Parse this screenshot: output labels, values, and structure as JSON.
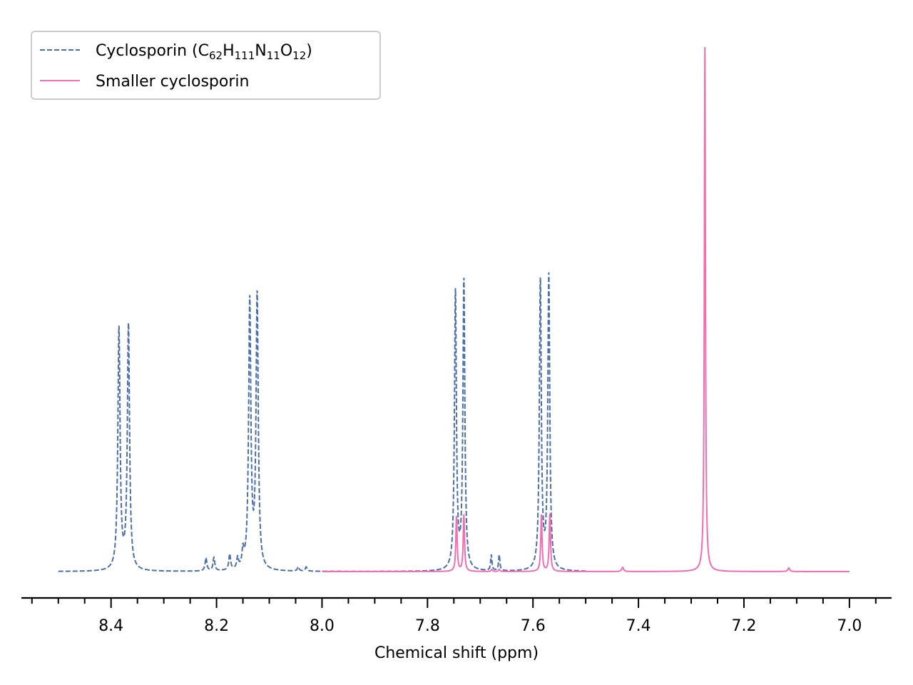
{
  "chart_data": {
    "type": "line",
    "xlabel": "Chemical shift (ppm)",
    "ylabel": "",
    "xlim": [
      8.57,
      6.92
    ],
    "x_reversed": true,
    "y_axis_visible": false,
    "grid": false,
    "legend_position": "top-left",
    "x_ticks": [
      "8.4",
      "8.2",
      "8.0",
      "7.8",
      "7.6",
      "7.4",
      "7.2",
      "7.0"
    ],
    "x_tick_values": [
      8.4,
      8.2,
      8.0,
      7.8,
      7.6,
      7.4,
      7.2,
      7.0
    ],
    "series": [
      {
        "name_parts": [
          {
            "text": "Cyclosporin (C"
          },
          {
            "text": "62",
            "sub": true
          },
          {
            "text": "H"
          },
          {
            "text": "111",
            "sub": true
          },
          {
            "text": "N"
          },
          {
            "text": "11",
            "sub": true
          },
          {
            "text": "O"
          },
          {
            "text": "12",
            "sub": true
          },
          {
            "text": ")"
          }
        ],
        "color": "#4c6fad",
        "line_style": "dashed",
        "x_range": [
          8.5,
          7.5
        ],
        "peaks": [
          {
            "x": 8.385,
            "height": 0.46,
            "width": 0.0025
          },
          {
            "x": 8.367,
            "height": 0.465,
            "width": 0.0025
          },
          {
            "x": 8.137,
            "height": 0.51,
            "width": 0.0025
          },
          {
            "x": 8.123,
            "height": 0.52,
            "width": 0.0025
          },
          {
            "x": 8.22,
            "height": 0.025,
            "width": 0.002
          },
          {
            "x": 8.205,
            "height": 0.025,
            "width": 0.002
          },
          {
            "x": 8.175,
            "height": 0.03,
            "width": 0.002
          },
          {
            "x": 8.16,
            "height": 0.02,
            "width": 0.002
          },
          {
            "x": 8.15,
            "height": 0.03,
            "width": 0.002
          },
          {
            "x": 8.045,
            "height": 0.008,
            "width": 0.002
          },
          {
            "x": 8.03,
            "height": 0.008,
            "width": 0.002
          },
          {
            "x": 7.747,
            "height": 0.53,
            "width": 0.0022
          },
          {
            "x": 7.731,
            "height": 0.55,
            "width": 0.0022
          },
          {
            "x": 7.679,
            "height": 0.03,
            "width": 0.0015
          },
          {
            "x": 7.664,
            "height": 0.03,
            "width": 0.0015
          },
          {
            "x": 7.586,
            "height": 0.55,
            "width": 0.0022
          },
          {
            "x": 7.57,
            "height": 0.56,
            "width": 0.0022
          }
        ]
      },
      {
        "name": "Smaller cyclosporin",
        "color": "#f46db1",
        "line_style": "solid",
        "x_range": [
          8.0,
          7.0
        ],
        "peaks": [
          {
            "x": 7.745,
            "height": 0.105,
            "width": 0.0015
          },
          {
            "x": 7.731,
            "height": 0.108,
            "width": 0.0015
          },
          {
            "x": 7.678,
            "height": 0.004,
            "width": 0.0015
          },
          {
            "x": 7.664,
            "height": 0.004,
            "width": 0.0015
          },
          {
            "x": 7.584,
            "height": 0.108,
            "width": 0.0015
          },
          {
            "x": 7.568,
            "height": 0.11,
            "width": 0.0015
          },
          {
            "x": 7.43,
            "height": 0.008,
            "width": 0.002
          },
          {
            "x": 7.274,
            "height": 1.0,
            "width": 0.0013
          },
          {
            "x": 7.115,
            "height": 0.007,
            "width": 0.002
          }
        ]
      }
    ]
  }
}
